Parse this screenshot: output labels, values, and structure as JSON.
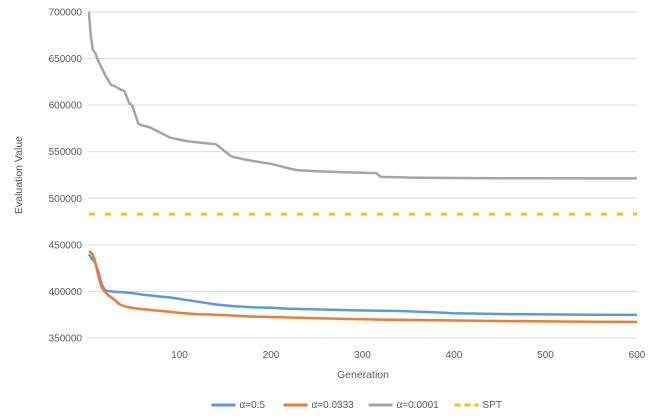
{
  "chart_data": {
    "type": "line",
    "title": "",
    "xlabel": "Generation",
    "ylabel": "Evaluation Value",
    "xlim": [
      0,
      600
    ],
    "ylim": [
      350000,
      700000
    ],
    "xticks": [
      "100",
      "200",
      "300",
      "400",
      "500",
      "600"
    ],
    "yticks": [
      "350000",
      "400000",
      "450000",
      "500000",
      "550000",
      "600000",
      "650000",
      "700000"
    ],
    "grid": true,
    "legend_position": "bottom",
    "series": [
      {
        "name": "α=0.5",
        "color": "#5b9bd5",
        "dashed": false,
        "x": [
          1,
          3,
          5,
          7,
          9,
          11,
          13,
          15,
          18,
          21,
          25,
          30,
          40,
          50,
          60,
          70,
          80,
          90,
          100,
          110,
          120,
          140,
          160,
          180,
          200,
          220,
          260,
          300,
          340,
          380,
          400,
          450,
          500,
          550,
          600
        ],
        "y": [
          440000,
          437000,
          434000,
          432000,
          428000,
          422000,
          415000,
          408000,
          402000,
          400500,
          400000,
          399500,
          399000,
          398000,
          396500,
          395500,
          394500,
          393500,
          392000,
          390500,
          389000,
          386000,
          384000,
          383000,
          382500,
          381500,
          380500,
          379500,
          379000,
          377500,
          376500,
          375800,
          375300,
          375000,
          374800
        ]
      },
      {
        "name": "α=0.0333",
        "color": "#ed7d31",
        "dashed": false,
        "x": [
          1,
          3,
          5,
          7,
          9,
          11,
          13,
          15,
          18,
          21,
          25,
          30,
          35,
          40,
          50,
          60,
          70,
          80,
          90,
          100,
          120,
          140,
          160,
          180,
          200,
          240,
          280,
          320,
          360,
          400,
          450,
          500,
          550,
          600
        ],
        "y": [
          443000,
          442000,
          440000,
          435000,
          427000,
          418000,
          410000,
          404000,
          400000,
          397000,
          394000,
          390000,
          386000,
          384000,
          382000,
          381000,
          380000,
          379000,
          378000,
          377000,
          375500,
          375000,
          374000,
          373000,
          372500,
          371500,
          370500,
          369800,
          369300,
          368800,
          368200,
          367800,
          367500,
          367300
        ]
      },
      {
        "name": "α=0.0001",
        "color": "#a5a5a5",
        "dashed": false,
        "x": [
          1,
          2,
          3,
          4,
          5,
          8,
          10,
          15,
          20,
          25,
          30,
          35,
          40,
          45,
          48,
          50,
          55,
          60,
          65,
          70,
          80,
          90,
          100,
          110,
          120,
          140,
          150,
          155,
          160,
          170,
          180,
          200,
          220,
          230,
          250,
          280,
          300,
          315,
          320,
          340,
          360,
          400,
          450,
          500,
          550,
          600
        ],
        "y": [
          700000,
          688000,
          675000,
          668000,
          660000,
          656000,
          650000,
          640000,
          630000,
          622000,
          620000,
          617000,
          615000,
          602000,
          600000,
          595000,
          580000,
          578000,
          577000,
          575000,
          570000,
          565000,
          563000,
          561000,
          560000,
          558000,
          550000,
          546000,
          544000,
          542000,
          540000,
          537000,
          532000,
          530000,
          529000,
          528000,
          527500,
          527000,
          523000,
          522500,
          522000,
          521800,
          521600,
          521500,
          521400,
          521300
        ]
      },
      {
        "name": "SPT",
        "color": "#ffc000",
        "dashed": true,
        "x": [
          1,
          600
        ],
        "y": [
          483000,
          483000
        ]
      }
    ]
  }
}
